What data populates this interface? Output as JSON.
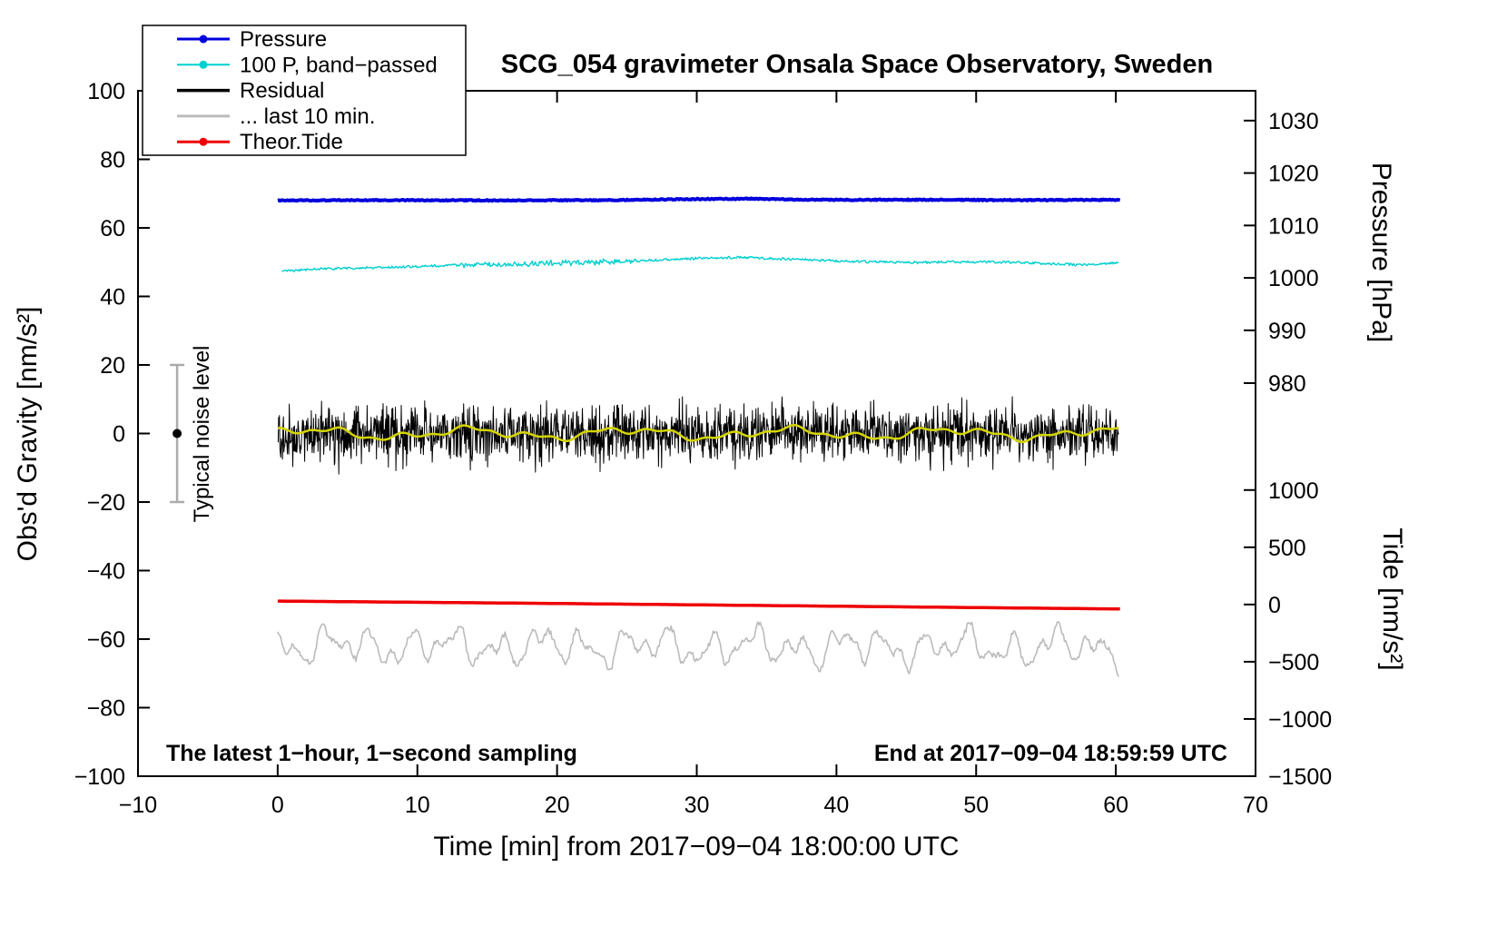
{
  "figure": {
    "background": "#ffffff"
  },
  "legend": {
    "items": [
      {
        "label": "Pressure",
        "color": "#0000dd",
        "marker": true,
        "line_width": 3
      },
      {
        "label": "100 P, band−passed",
        "color": "#00cfcf",
        "marker": true,
        "line_width": 2
      },
      {
        "label": "Residual",
        "color": "#000000",
        "marker": false,
        "line_width": 3.5
      },
      {
        "label": "... last 10 min.",
        "color": "#bbbbbb",
        "marker": false,
        "line_width": 3
      },
      {
        "label": "Theor.Tide",
        "color": "#ee0000",
        "marker": true,
        "line_width": 3
      }
    ]
  },
  "chart_data": {
    "type": "line",
    "title": "SCG_054 gravimeter Onsala Space Observatory, Sweden",
    "xlabel": "Time [min] from 2017−09−04 18:00:00 UTC",
    "grid": false,
    "legend_position": "top-left",
    "x_axis": {
      "range": [
        -10,
        70
      ],
      "ticks": [
        -10,
        0,
        10,
        20,
        30,
        40,
        50,
        60,
        70
      ]
    },
    "y_axis_gravity": {
      "label": "Obs'd Gravity [nm/s²]",
      "range": [
        -100,
        100
      ],
      "ticks": [
        100,
        80,
        60,
        40,
        20,
        0,
        -20,
        -40,
        -60,
        -80,
        -100
      ]
    },
    "y_axis_pressure": {
      "label": "Pressure [hPa]",
      "ticks": [
        1030,
        1020,
        1010,
        1000,
        990,
        980
      ],
      "gravity_positions": [
        91.3,
        76.0,
        60.7,
        45.4,
        30.1,
        14.7
      ]
    },
    "y_axis_tide": {
      "label": "Tide [nm/s²]",
      "ticks": [
        1000,
        500,
        0,
        -500,
        -1000,
        -1500
      ],
      "gravity_positions": [
        -16.5,
        -33.2,
        -49.9,
        -66.6,
        -83.3,
        -100
      ]
    },
    "series": [
      {
        "id": "last10",
        "name": "... last 10 min.",
        "color": "#bbbbbb",
        "width": 1.6,
        "points": 700,
        "x_range": [
          0.0,
          60.2
        ],
        "control_points": [
          [
            0,
            -62.0
          ],
          [
            60.2,
            -62.5
          ]
        ],
        "sines": [
          [
            3.2,
            2.05,
            0.7
          ],
          [
            2.4,
            3.8,
            2.1
          ],
          [
            1.6,
            0.85,
            4.0
          ],
          [
            1.1,
            6.2,
            1.3
          ]
        ],
        "noise": 0.8
      },
      {
        "id": "tide",
        "name": "Theor.Tide",
        "color": "#ee0000",
        "width": 3.5,
        "points": 200,
        "x_range": [
          0.0,
          60.3
        ],
        "control_points": [
          [
            0,
            -48.9
          ],
          [
            20,
            -49.6
          ],
          [
            40,
            -50.4
          ],
          [
            60.3,
            -51.2
          ]
        ]
      },
      {
        "id": "bandpassed",
        "name": "100 P, band−passed",
        "color": "#00cfcf",
        "width": 1.4,
        "points": 800,
        "x_range": [
          0.3,
          60.2
        ],
        "control_points": [
          [
            0.3,
            47.4
          ],
          [
            3,
            48.0
          ],
          [
            6,
            48.3
          ],
          [
            9,
            48.6
          ],
          [
            12,
            49.0
          ],
          [
            15,
            49.3
          ],
          [
            18,
            49.5
          ],
          [
            21,
            49.8
          ],
          [
            24,
            50.1
          ],
          [
            27,
            50.6
          ],
          [
            30,
            51.1
          ],
          [
            33,
            51.4
          ],
          [
            36,
            51.0
          ],
          [
            39,
            50.5
          ],
          [
            42,
            50.1
          ],
          [
            45,
            49.9
          ],
          [
            48,
            50.0
          ],
          [
            51,
            50.1
          ],
          [
            54,
            49.8
          ],
          [
            56,
            49.4
          ],
          [
            58,
            49.2
          ],
          [
            60.2,
            49.9
          ]
        ],
        "noise": 0.35,
        "extra_noise": [
          13,
          26,
          0.6
        ]
      },
      {
        "id": "pressure",
        "name": "Pressure",
        "color": "#0000dd",
        "width": 4,
        "points": 700,
        "x_range": [
          0.0,
          60.3
        ],
        "control_points": [
          [
            0,
            68.0
          ],
          [
            8,
            68.1
          ],
          [
            16,
            68.0
          ],
          [
            24,
            68.1
          ],
          [
            30,
            68.4
          ],
          [
            34,
            68.5
          ],
          [
            38,
            68.2
          ],
          [
            46,
            68.2
          ],
          [
            54,
            68.1
          ],
          [
            60.3,
            68.2
          ]
        ],
        "noise": 0.15
      },
      {
        "id": "residual",
        "name": "Residual",
        "color": "#000000",
        "width": 1,
        "points": 1900,
        "x_range": [
          0.0,
          60.2
        ],
        "control_points": [
          [
            0,
            0
          ],
          [
            60.2,
            0
          ]
        ],
        "gauss": 7
      },
      {
        "id": "smoothed",
        "name": "Residual (smoothed)",
        "color": "#d4d400",
        "width": 2.5,
        "points": 500,
        "x_range": [
          0.0,
          60.2
        ],
        "control_points": [
          [
            0,
            0
          ],
          [
            60.2,
            0
          ]
        ],
        "sines": [
          [
            1.2,
            0.55,
            0.3
          ],
          [
            0.8,
            1.35,
            2.0
          ],
          [
            0.5,
            2.9,
            1.0
          ]
        ]
      }
    ],
    "noise_bar": {
      "x": -7.2,
      "center": 0,
      "half_height": 20,
      "label": "Typical noise level",
      "bar_color": "#ababab",
      "dot_color": "#000000"
    },
    "notes": {
      "bottom_left": "The latest 1−hour, 1−second sampling",
      "bottom_right": "End at 2017−09−04 18:59:59 UTC"
    }
  }
}
